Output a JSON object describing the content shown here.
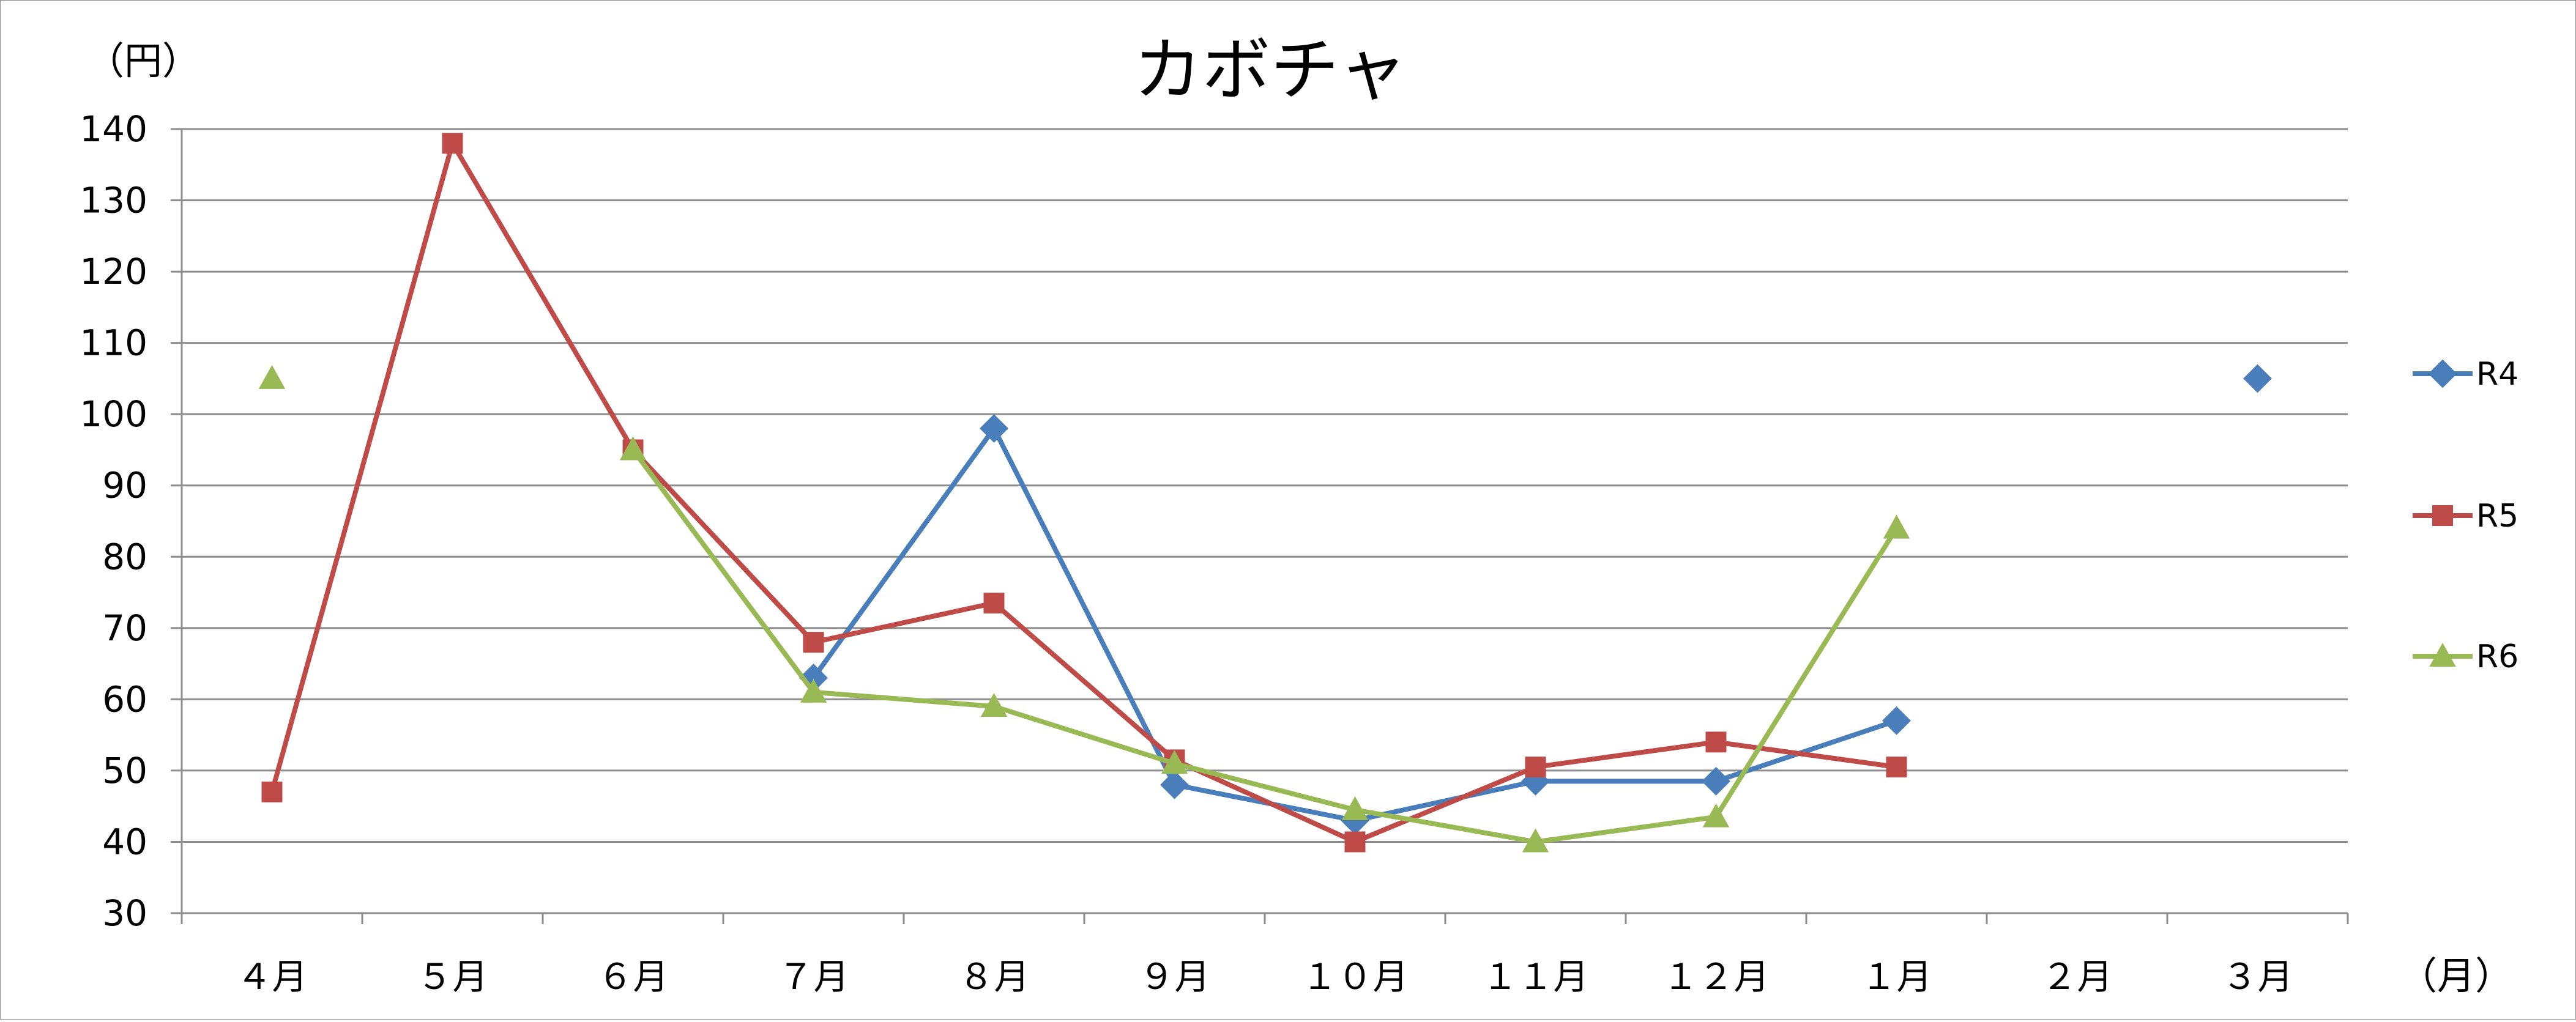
{
  "chart_data": {
    "type": "line",
    "title": "カボチャ",
    "ylabel": "（円）",
    "xlabel": "（月）",
    "categories": [
      "４月",
      "５月",
      "６月",
      "７月",
      "８月",
      "９月",
      "１０月",
      "１１月",
      "１２月",
      "１月",
      "２月",
      "３月"
    ],
    "ylim": [
      30,
      140
    ],
    "yticks": [
      30,
      40,
      50,
      60,
      70,
      80,
      90,
      100,
      110,
      120,
      130,
      140
    ],
    "grid": true,
    "legend": "right",
    "series": [
      {
        "name": "R4",
        "color": "#4a7ebb",
        "marker": "diamond",
        "values": [
          null,
          null,
          null,
          63,
          98,
          48,
          43,
          48.5,
          48.5,
          57,
          null,
          105
        ]
      },
      {
        "name": "R5",
        "color": "#be4b48",
        "marker": "square",
        "values": [
          47,
          138,
          95,
          68,
          73.5,
          51.5,
          40,
          50.5,
          54,
          50.5,
          null,
          null
        ]
      },
      {
        "name": "R6",
        "color": "#98b954",
        "marker": "triangle",
        "values": [
          105,
          null,
          95,
          61,
          59,
          51,
          44.5,
          40,
          43.5,
          84,
          null,
          null
        ]
      }
    ]
  }
}
